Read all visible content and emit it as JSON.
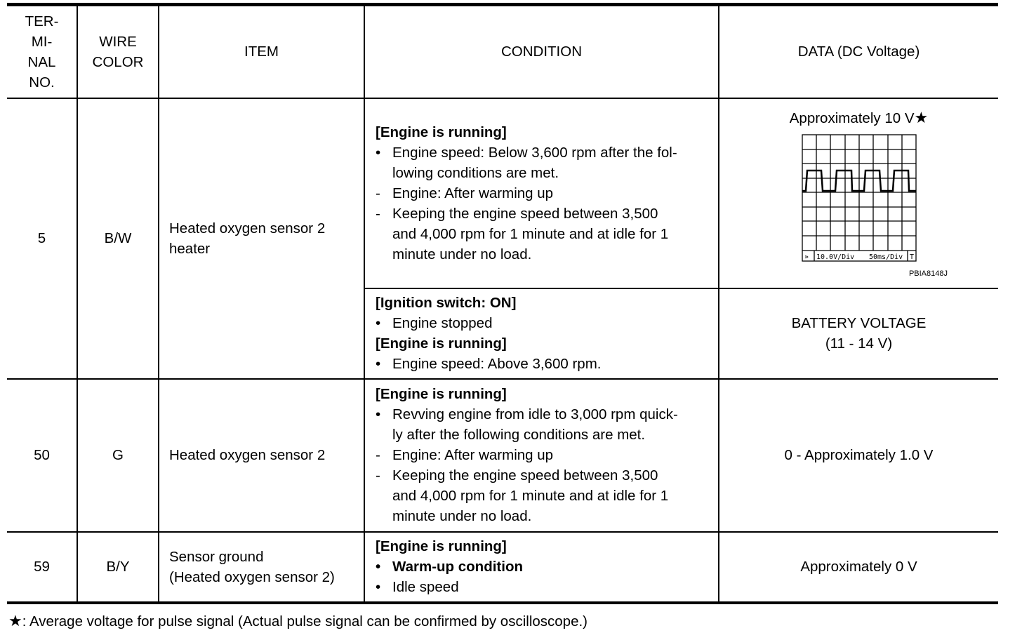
{
  "header": {
    "terminal_no": "TER-\nMI-\nNAL\nNO.",
    "wire_color": "WIRE\nCOLOR",
    "item": "ITEM",
    "condition": "CONDITION",
    "data": "DATA (DC Voltage)"
  },
  "rows": [
    {
      "terminal": "5",
      "wire": "B/W",
      "item": "Heated oxygen sensor 2\nheater",
      "conditions": [
        {
          "lines": [
            {
              "marker": "",
              "text": "[Engine is running]",
              "bold": true
            },
            {
              "marker": "•",
              "text": "Engine speed: Below 3,600 rpm after the fol-\nlowing conditions are met."
            },
            {
              "marker": "-",
              "text": "Engine: After warming up"
            },
            {
              "marker": "-",
              "text": "Keeping the engine speed between 3,500\nand 4,000 rpm for 1 minute and at idle for 1\nminute under no load."
            }
          ],
          "data": "Approximately 10 V",
          "data_marker": "★",
          "scope": {
            "volt_div": "10.0V/Div",
            "time_div": "50ms/Div",
            "trigger": "T",
            "arrow": "»",
            "figure_code": "PBIA8148J"
          }
        },
        {
          "lines": [
            {
              "marker": "",
              "text": "[Ignition switch: ON]",
              "bold": true
            },
            {
              "marker": "•",
              "text": "Engine stopped"
            },
            {
              "marker": "",
              "text": "[Engine is running]",
              "bold": true
            },
            {
              "marker": "•",
              "text": "Engine speed: Above 3,600 rpm."
            }
          ],
          "data": "BATTERY VOLTAGE\n(11 - 14 V)"
        }
      ]
    },
    {
      "terminal": "50",
      "wire": "G",
      "item": "Heated oxygen sensor 2",
      "conditions": [
        {
          "lines": [
            {
              "marker": "",
              "text": "[Engine is running]",
              "bold": true
            },
            {
              "marker": "•",
              "text": "Revving engine from idle to 3,000 rpm quick-\nly after the following conditions are met."
            },
            {
              "marker": "-",
              "text": "Engine: After warming up"
            },
            {
              "marker": "-",
              "text": "Keeping the engine speed between 3,500\nand 4,000 rpm for 1 minute and at idle for 1\nminute under no load."
            }
          ],
          "data": "0 - Approximately 1.0 V"
        }
      ]
    },
    {
      "terminal": "59",
      "wire": "B/Y",
      "item": "Sensor ground\n(Heated oxygen sensor 2)",
      "conditions": [
        {
          "lines": [
            {
              "marker": "",
              "text": "[Engine is running]",
              "bold": true
            },
            {
              "marker": "•",
              "text": "Warm-up condition",
              "bold": true
            },
            {
              "marker": "•",
              "text": "Idle speed"
            }
          ],
          "data": "Approximately 0 V"
        }
      ]
    }
  ],
  "footnote": {
    "marker": "★",
    "text": ": Average voltage for pulse signal (Actual pulse signal can be confirmed by oscilloscope.)"
  }
}
